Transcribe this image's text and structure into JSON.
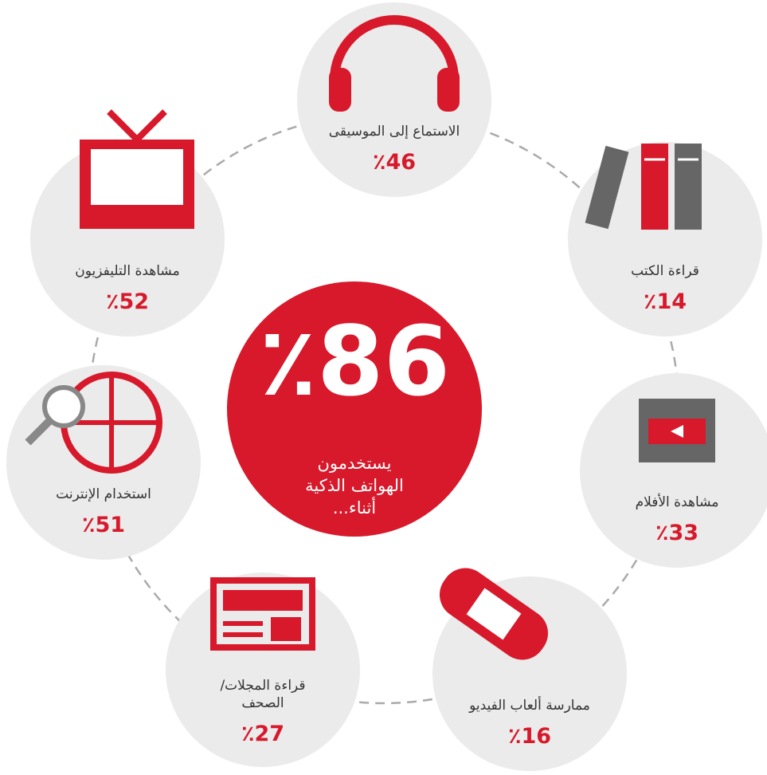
{
  "center": {
    "value": "٪86",
    "caption": [
      "يستخدمون",
      "الهواتف الذكية",
      "أثناء..."
    ]
  },
  "items": [
    {
      "label": [
        "الاستماع إلى الموسيقى"
      ],
      "value": "٪46"
    },
    {
      "label": [
        "قراءة الكتب"
      ],
      "value": "٪14"
    },
    {
      "label": [
        "مشاهدة الأفلام"
      ],
      "value": "٪33"
    },
    {
      "label": [
        "ممارسة ألعاب الفيديو"
      ],
      "value": "٪16"
    },
    {
      "label": [
        "قراءة المجلات/",
        "الصحف"
      ],
      "value": "٪27"
    },
    {
      "label": [
        "استخدام الإنترنت"
      ],
      "value": "٪51"
    },
    {
      "label": [
        "مشاهدة التليفزيون"
      ],
      "value": "٪52"
    }
  ]
}
